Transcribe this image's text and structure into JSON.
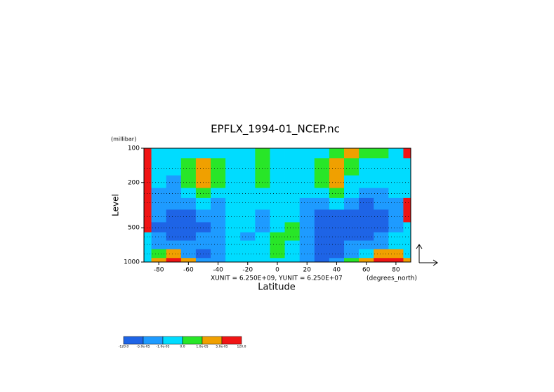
{
  "chart_data": {
    "type": "contour",
    "title": "EPFLX_1994-01_NCEP.nc",
    "y_units": "(millibar)",
    "y_label": "Level",
    "x_label": "Latitude",
    "x_units": "(degrees_north)",
    "vector_units": "XUNIT = 6.250E+09, YUNIT = 6.250E+07",
    "xlim": [
      -90,
      90
    ],
    "xticks": [
      -80,
      -60,
      -40,
      -20,
      0,
      20,
      40,
      60,
      80
    ],
    "ylim": [
      100,
      1000
    ],
    "yticks": [
      100,
      200,
      500,
      1000
    ],
    "log_y": true,
    "y_inverted": true,
    "x": [
      -90,
      -80,
      -70,
      -60,
      -50,
      -40,
      -30,
      -20,
      -10,
      0,
      10,
      20,
      30,
      40,
      50,
      60,
      70,
      80,
      90
    ],
    "y": [
      100,
      150,
      200,
      250,
      300,
      400,
      500,
      600,
      700,
      850,
      1000
    ],
    "z": [
      [
        0.0001,
        -5e-06,
        -5e-06,
        -5e-06,
        -5e-06,
        -5e-06,
        -5e-06,
        -5e-06,
        5e-06,
        -5e-06,
        -5e-06,
        -5e-06,
        -5e-06,
        5e-06,
        3e-05,
        5e-06,
        5e-06,
        -5e-06,
        0.0001
      ],
      [
        0.0001,
        -5e-06,
        -5e-06,
        5e-06,
        3e-05,
        5e-06,
        -5e-06,
        -5e-06,
        5e-06,
        -5e-06,
        -5e-06,
        -5e-06,
        5e-06,
        3e-05,
        5e-06,
        -5e-06,
        -5e-06,
        -5e-06,
        -5e-06
      ],
      [
        0.0001,
        -5e-06,
        -3e-05,
        5e-06,
        3e-05,
        5e-06,
        -5e-06,
        -5e-06,
        5e-06,
        -5e-06,
        -5e-06,
        -5e-06,
        5e-06,
        3e-05,
        -5e-06,
        -5e-06,
        -5e-06,
        -5e-06,
        -5e-06
      ],
      [
        0.0001,
        -3e-05,
        -3e-05,
        -5e-06,
        5e-06,
        -5e-06,
        -5e-06,
        -5e-06,
        -5e-06,
        -5e-06,
        -5e-06,
        -5e-06,
        -5e-06,
        5e-06,
        -5e-06,
        -3e-05,
        -3e-05,
        -5e-06,
        -5e-06
      ],
      [
        0.0001,
        -3e-05,
        -3e-05,
        -3e-05,
        -5e-06,
        -3e-05,
        -5e-06,
        -5e-06,
        -5e-06,
        -5e-06,
        -5e-06,
        -3e-05,
        -3e-05,
        -5e-06,
        -3e-05,
        -6e-05,
        -3e-05,
        -3e-05,
        0.0001
      ],
      [
        0.0001,
        -3e-05,
        -6e-05,
        -6e-05,
        -3e-05,
        -3e-05,
        -5e-06,
        -5e-06,
        -3e-05,
        -5e-06,
        -5e-06,
        -3e-05,
        -6e-05,
        -6e-05,
        -6e-05,
        -6e-05,
        -6e-05,
        -3e-05,
        0.0001
      ],
      [
        0.0001,
        -6e-05,
        -6e-05,
        -6e-05,
        -6e-05,
        -3e-05,
        -5e-06,
        -5e-06,
        -3e-05,
        -5e-06,
        5e-06,
        -3e-05,
        -6e-05,
        -6e-05,
        -6e-05,
        -6e-05,
        -6e-05,
        -3e-05,
        -5e-06
      ],
      [
        -5e-06,
        -3e-05,
        -6e-05,
        -6e-05,
        -3e-05,
        -3e-05,
        -5e-06,
        -3e-05,
        -5e-06,
        5e-06,
        5e-06,
        -3e-05,
        -6e-05,
        -6e-05,
        -6e-05,
        -6e-05,
        -3e-05,
        -5e-06,
        -5e-06
      ],
      [
        -5e-06,
        -3e-05,
        -3e-05,
        -3e-05,
        -3e-05,
        -3e-05,
        -5e-06,
        -5e-06,
        -5e-06,
        5e-06,
        -5e-06,
        -3e-05,
        -6e-05,
        -6e-05,
        -3e-05,
        -3e-05,
        -3e-05,
        -5e-06,
        -5e-06
      ],
      [
        -5e-06,
        5e-06,
        3e-05,
        -3e-05,
        -6e-05,
        -3e-05,
        -5e-06,
        -5e-06,
        -5e-06,
        5e-06,
        -5e-06,
        -3e-05,
        -6e-05,
        -6e-05,
        -3e-05,
        -5e-06,
        3e-05,
        3e-05,
        -5e-06
      ],
      [
        -5e-06,
        3e-05,
        0.0001,
        3e-05,
        -3e-05,
        -3e-05,
        -5e-06,
        -5e-06,
        -5e-06,
        -5e-06,
        -5e-06,
        -3e-05,
        -6e-05,
        -3e-05,
        5e-06,
        3e-05,
        0.0001,
        0.0001,
        3e-05
      ]
    ],
    "colorbar": {
      "levels": [
        {
          "value": -120,
          "label": "-120.0"
        },
        {
          "value": -5e-05,
          "label": "-5.0e-05"
        },
        {
          "value": -1e-05,
          "label": "-1.0e-05"
        },
        {
          "value": 0,
          "label": "0.0"
        },
        {
          "value": 1e-05,
          "label": "1.0e-05"
        },
        {
          "value": 5e-05,
          "label": "5.0e-05"
        },
        {
          "value": 120,
          "label": "120.0"
        }
      ],
      "colors": [
        "#1e64e6",
        "#1e9bff",
        "#00dcff",
        "#28e628",
        "#f0a000",
        "#f01414"
      ]
    }
  }
}
